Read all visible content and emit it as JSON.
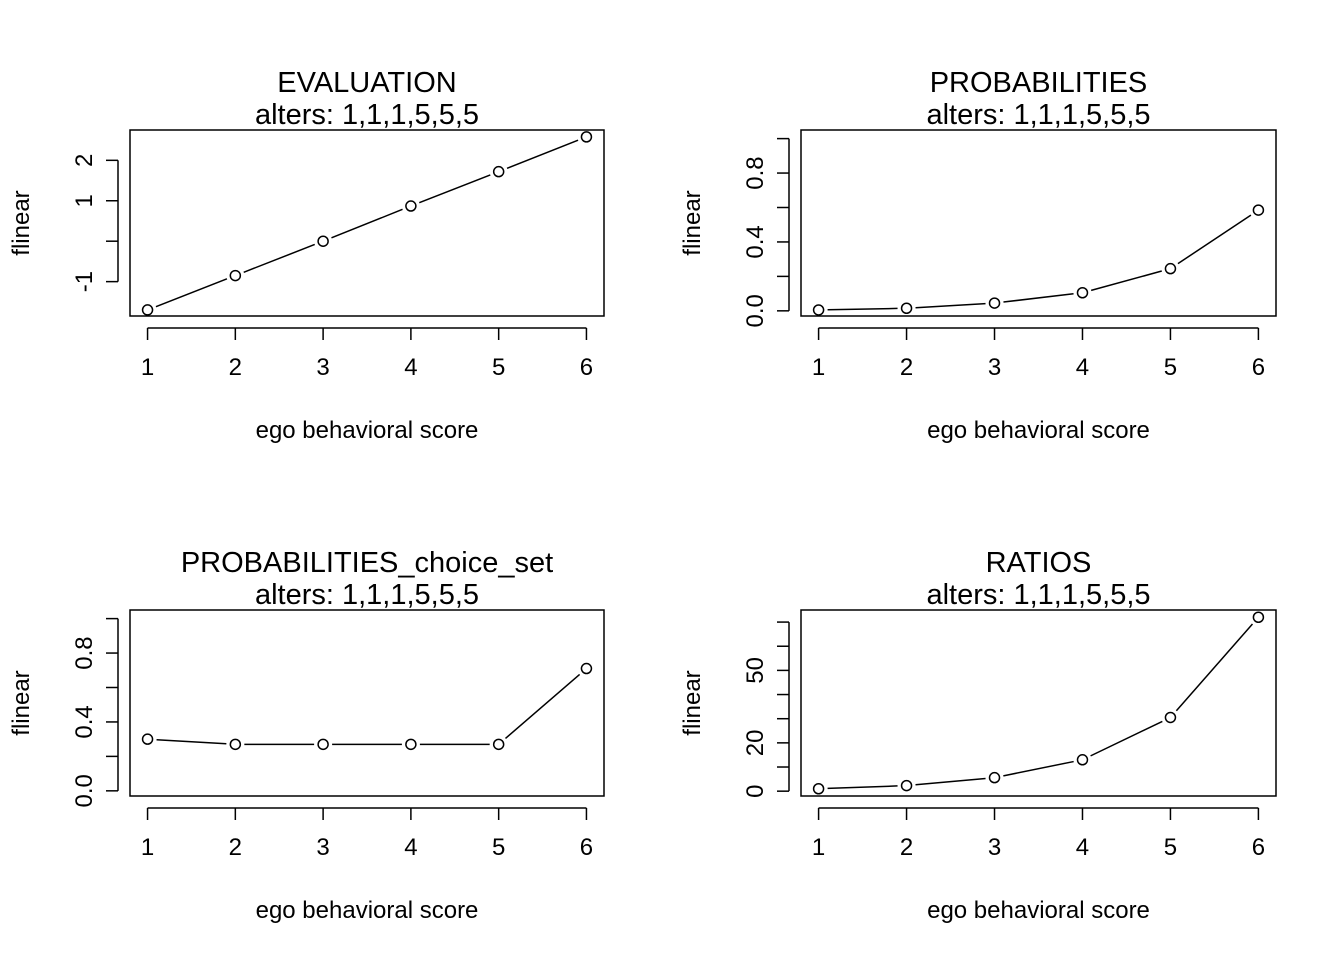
{
  "chart_data": [
    {
      "type": "line",
      "title": "EVALUATION",
      "subtitle": "alters: 1,1,1,5,5,5",
      "xlabel": "ego behavioral score",
      "ylabel": "flinear",
      "x": [
        1,
        2,
        3,
        4,
        5,
        6
      ],
      "values": [
        -1.7,
        -0.85,
        0.0,
        0.87,
        1.72,
        2.58
      ],
      "xlim": [
        0.8,
        6.2
      ],
      "ylim": [
        -1.85,
        2.75
      ],
      "xticks": [
        1,
        2,
        3,
        4,
        5,
        6
      ],
      "xticklabels": [
        "1",
        "2",
        "3",
        "4",
        "5",
        "6"
      ],
      "yticks": [
        -1,
        0,
        1,
        2
      ],
      "yticklabels": [
        "-1",
        "",
        "1",
        "2"
      ],
      "grid": false
    },
    {
      "type": "line",
      "title": "PROBABILITIES",
      "subtitle": "alters: 1,1,1,5,5,5",
      "xlabel": "ego behavioral score",
      "ylabel": "flinear",
      "x": [
        1,
        2,
        3,
        4,
        5,
        6
      ],
      "values": [
        0.005,
        0.015,
        0.045,
        0.105,
        0.245,
        0.585
      ],
      "xlim": [
        0.8,
        6.2
      ],
      "ylim": [
        -0.03,
        1.05
      ],
      "xticks": [
        1,
        2,
        3,
        4,
        5,
        6
      ],
      "xticklabels": [
        "1",
        "2",
        "3",
        "4",
        "5",
        "6"
      ],
      "yticks": [
        0.0,
        0.2,
        0.4,
        0.6,
        0.8,
        1.0
      ],
      "yticklabels": [
        "0.0",
        "",
        "0.4",
        "",
        "0.8",
        ""
      ],
      "grid": false
    },
    {
      "type": "line",
      "title": "PROBABILITIES_choice_set",
      "subtitle": "alters: 1,1,1,5,5,5",
      "xlabel": "ego behavioral score",
      "ylabel": "flinear",
      "x": [
        1,
        2,
        3,
        4,
        5,
        6
      ],
      "values": [
        0.3,
        0.27,
        0.27,
        0.27,
        0.27,
        0.71
      ],
      "xlim": [
        0.8,
        6.2
      ],
      "ylim": [
        -0.03,
        1.05
      ],
      "xticks": [
        1,
        2,
        3,
        4,
        5,
        6
      ],
      "xticklabels": [
        "1",
        "2",
        "3",
        "4",
        "5",
        "6"
      ],
      "yticks": [
        0.0,
        0.2,
        0.4,
        0.6,
        0.8,
        1.0
      ],
      "yticklabels": [
        "0.0",
        "",
        "0.4",
        "",
        "0.8",
        ""
      ],
      "grid": false
    },
    {
      "type": "line",
      "title": "RATIOS",
      "subtitle": "alters: 1,1,1,5,5,5",
      "xlabel": "ego behavioral score",
      "ylabel": "flinear",
      "x": [
        1,
        2,
        3,
        4,
        5,
        6
      ],
      "values": [
        1,
        2.3,
        5.6,
        13,
        30.5,
        72
      ],
      "xlim": [
        0.8,
        6.2
      ],
      "ylim": [
        -2,
        75
      ],
      "xticks": [
        1,
        2,
        3,
        4,
        5,
        6
      ],
      "xticklabels": [
        "1",
        "2",
        "3",
        "4",
        "5",
        "6"
      ],
      "yticks": [
        0,
        10,
        20,
        30,
        40,
        50,
        60,
        70
      ],
      "yticklabels": [
        "0",
        "",
        "20",
        "",
        "",
        "50",
        "",
        ""
      ],
      "grid": false
    }
  ]
}
